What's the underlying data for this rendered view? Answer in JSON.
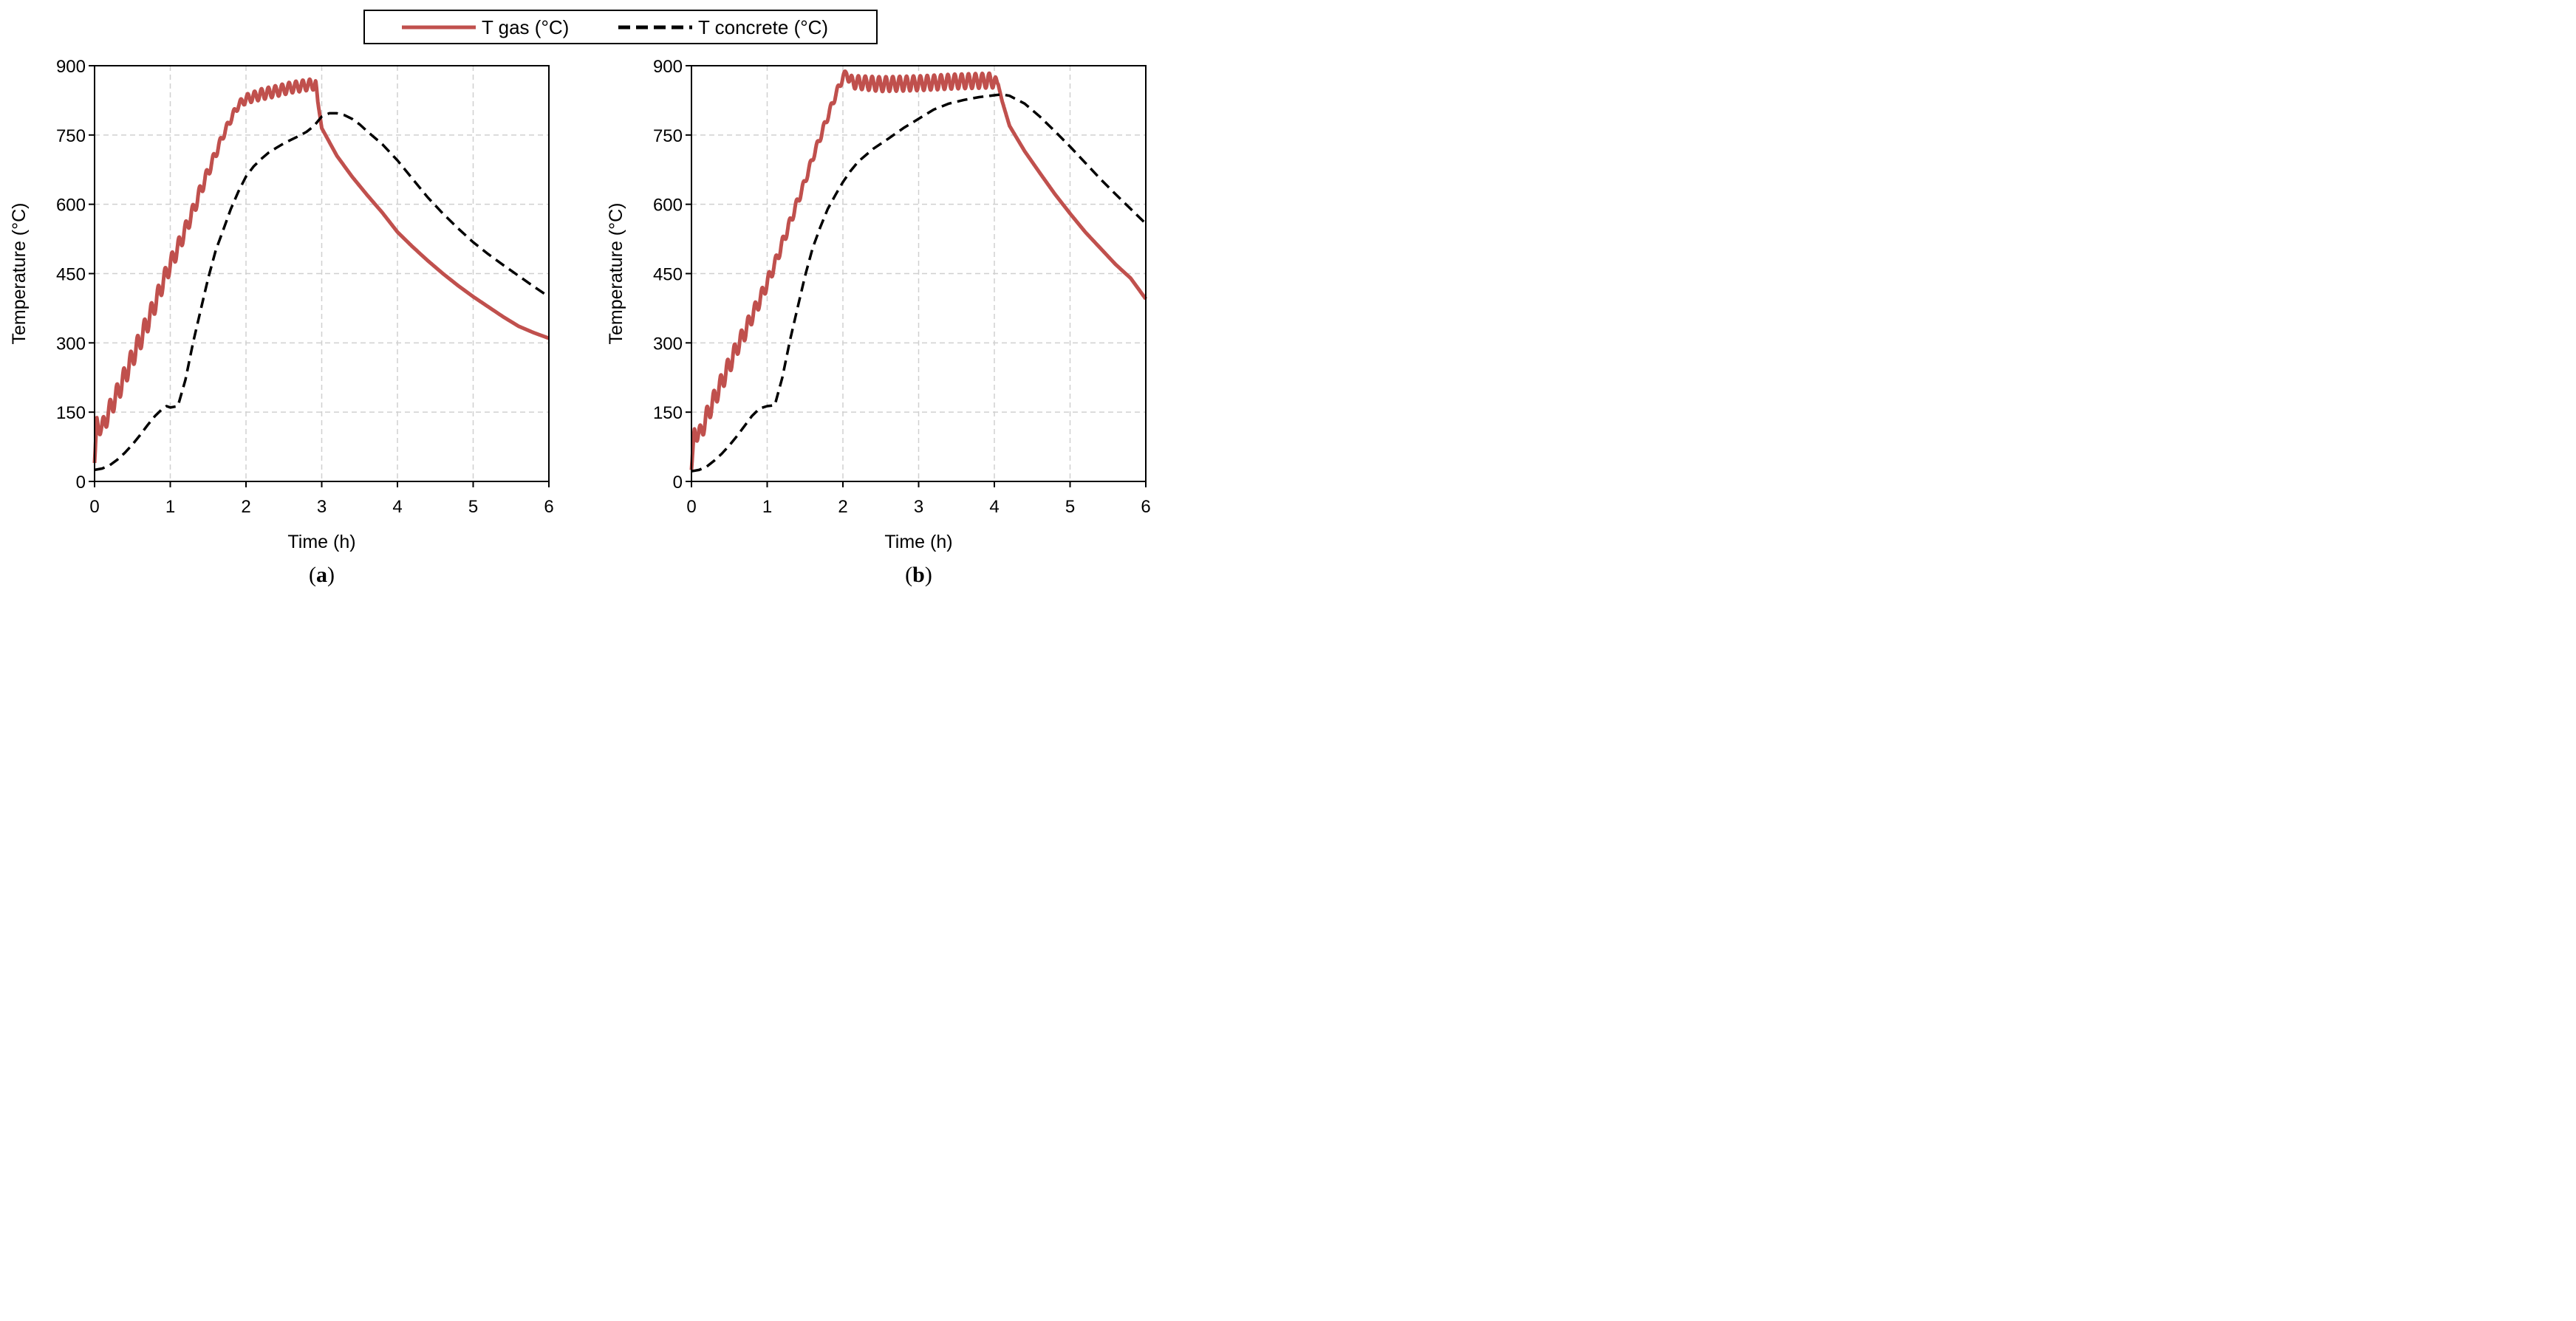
{
  "legend": {
    "entries": [
      {
        "label": "T gas (°C)",
        "style": "solid",
        "color": "#c0504d"
      },
      {
        "label": "T concrete (°C)",
        "style": "dashed",
        "color": "#000000"
      }
    ]
  },
  "chart_data": [
    {
      "type": "line",
      "panel_label": {
        "open": "(",
        "letter": "a",
        "close": ")"
      },
      "xlabel": "Time (h)",
      "ylabel": "Temperature (°C)",
      "xlim": [
        0,
        6
      ],
      "ylim": [
        0,
        900
      ],
      "xticks": [
        0,
        1,
        2,
        3,
        4,
        5,
        6
      ],
      "yticks": [
        0,
        150,
        300,
        450,
        600,
        750,
        900
      ],
      "x_tick_labels": [
        "0",
        "1",
        "2",
        "3",
        "4",
        "5",
        "6"
      ],
      "y_tick_labels": [
        "0",
        "150",
        "300",
        "450",
        "600",
        "750",
        "900"
      ],
      "grid": true,
      "series": [
        {
          "name": "T gas (°C)",
          "style": "solid",
          "color": "#c0504d",
          "x": [
            0,
            0.03,
            0.06,
            0.1,
            0.15,
            0.2,
            0.3,
            0.4,
            0.5,
            0.6,
            0.7,
            0.8,
            0.9,
            1.0,
            1.1,
            1.2,
            1.3,
            1.4,
            1.5,
            1.6,
            1.7,
            1.8,
            1.9,
            2.0,
            2.2,
            2.4,
            2.6,
            2.8,
            2.92,
            2.95,
            3.0,
            3.2,
            3.4,
            3.6,
            3.8,
            4.0,
            4.2,
            4.4,
            4.6,
            4.8,
            5.0,
            5.2,
            5.4,
            5.6,
            5.8,
            6.0
          ],
          "values": [
            40,
            125,
            118,
            115,
            135,
            155,
            190,
            228,
            268,
            305,
            345,
            385,
            430,
            470,
            505,
            545,
            585,
            630,
            670,
            710,
            750,
            785,
            815,
            828,
            838,
            845,
            853,
            858,
            860,
            820,
            765,
            705,
            660,
            620,
            582,
            540,
            508,
            478,
            450,
            424,
            400,
            378,
            356,
            336,
            322,
            310
          ],
          "oscillation": [
            0,
            15,
            15,
            18,
            20,
            20,
            22,
            22,
            22,
            22,
            22,
            20,
            20,
            18,
            18,
            16,
            15,
            14,
            12,
            10,
            8,
            8,
            8,
            10,
            12,
            12,
            12,
            12,
            12,
            0,
            0,
            0,
            0,
            0,
            0,
            0,
            0,
            0,
            0,
            0,
            0,
            0,
            0,
            0,
            0,
            0
          ]
        },
        {
          "name": "T concrete (°C)",
          "style": "dashed",
          "color": "#000000",
          "x": [
            0,
            0.1,
            0.2,
            0.3,
            0.4,
            0.5,
            0.6,
            0.7,
            0.8,
            0.9,
            0.95,
            1.0,
            1.1,
            1.2,
            1.3,
            1.4,
            1.5,
            1.6,
            1.7,
            1.8,
            1.9,
            2.0,
            2.1,
            2.2,
            2.3,
            2.4,
            2.5,
            2.6,
            2.7,
            2.8,
            2.9,
            3.0,
            3.1,
            3.2,
            3.3,
            3.4,
            3.5,
            3.6,
            3.8,
            4.0,
            4.2,
            4.4,
            4.6,
            4.8,
            5.0,
            5.2,
            5.4,
            5.6,
            5.8,
            6.0
          ],
          "values": [
            25,
            28,
            35,
            47,
            62,
            80,
            100,
            122,
            142,
            158,
            163,
            160,
            163,
            220,
            300,
            370,
            440,
            500,
            545,
            590,
            628,
            660,
            682,
            698,
            712,
            722,
            732,
            740,
            748,
            757,
            770,
            790,
            797,
            797,
            793,
            785,
            773,
            758,
            730,
            695,
            655,
            615,
            580,
            548,
            518,
            492,
            468,
            445,
            422,
            400
          ]
        }
      ]
    },
    {
      "type": "line",
      "panel_label": {
        "open": "(",
        "letter": "b",
        "close": ")"
      },
      "xlabel": "Time (h)",
      "ylabel": "Temperature (°C)",
      "xlim": [
        0,
        6
      ],
      "ylim": [
        0,
        900
      ],
      "xticks": [
        0,
        1,
        2,
        3,
        4,
        5,
        6
      ],
      "yticks": [
        0,
        150,
        300,
        450,
        600,
        750,
        900
      ],
      "x_tick_labels": [
        "0",
        "1",
        "2",
        "3",
        "4",
        "5",
        "6"
      ],
      "y_tick_labels": [
        "0",
        "150",
        "300",
        "450",
        "600",
        "750",
        "900"
      ],
      "grid": true,
      "series": [
        {
          "name": "T gas (°C)",
          "style": "solid",
          "color": "#c0504d",
          "x": [
            0,
            0.04,
            0.08,
            0.12,
            0.16,
            0.2,
            0.3,
            0.4,
            0.5,
            0.6,
            0.7,
            0.8,
            0.9,
            1.0,
            1.1,
            1.2,
            1.3,
            1.4,
            1.5,
            1.6,
            1.7,
            1.8,
            1.9,
            2.0,
            2.05,
            2.1,
            2.5,
            3.0,
            3.5,
            4.0,
            4.05,
            4.1,
            4.2,
            4.4,
            4.6,
            4.8,
            5.0,
            5.2,
            5.4,
            5.6,
            5.8,
            6.0
          ],
          "values": [
            25,
            110,
            100,
            105,
            120,
            140,
            178,
            215,
            252,
            290,
            322,
            358,
            392,
            430,
            470,
            515,
            560,
            605,
            650,
            700,
            745,
            790,
            835,
            875,
            885,
            865,
            860,
            862,
            866,
            868,
            860,
            825,
            770,
            715,
            668,
            622,
            580,
            540,
            505,
            470,
            440,
            395
          ],
          "oscillation": [
            0,
            15,
            15,
            18,
            18,
            20,
            20,
            20,
            20,
            18,
            18,
            16,
            15,
            14,
            12,
            12,
            10,
            10,
            8,
            8,
            8,
            8,
            8,
            8,
            8,
            14,
            16,
            16,
            16,
            16,
            0,
            0,
            0,
            0,
            0,
            0,
            0,
            0,
            0,
            0,
            0,
            0
          ]
        },
        {
          "name": "T concrete (°C)",
          "style": "dashed",
          "color": "#000000",
          "x": [
            0,
            0.1,
            0.2,
            0.3,
            0.4,
            0.5,
            0.6,
            0.7,
            0.8,
            0.9,
            1.0,
            1.1,
            1.2,
            1.3,
            1.4,
            1.5,
            1.6,
            1.7,
            1.8,
            1.9,
            2.0,
            2.1,
            2.2,
            2.4,
            2.6,
            2.8,
            3.0,
            3.2,
            3.4,
            3.6,
            3.8,
            4.0,
            4.1,
            4.2,
            4.4,
            4.6,
            4.8,
            5.0,
            5.2,
            5.4,
            5.6,
            5.8,
            6.0
          ],
          "values": [
            22,
            25,
            32,
            45,
            60,
            78,
            98,
            120,
            142,
            158,
            163,
            165,
            225,
            305,
            375,
            445,
            505,
            550,
            590,
            620,
            648,
            672,
            692,
            720,
            742,
            765,
            785,
            805,
            818,
            826,
            832,
            836,
            838,
            835,
            818,
            790,
            758,
            725,
            690,
            655,
            622,
            590,
            558
          ]
        }
      ]
    }
  ]
}
